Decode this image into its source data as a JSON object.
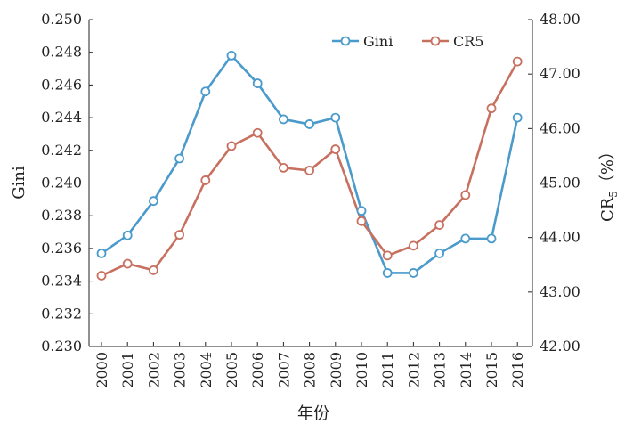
{
  "colors": {
    "gini": "#4a9acb",
    "cr5": "#c87060",
    "axis": "#222222"
  },
  "chart_data": {
    "type": "line",
    "categories": [
      "2000",
      "2001",
      "2002",
      "2003",
      "2004",
      "2005",
      "2006",
      "2007",
      "2008",
      "2009",
      "2010",
      "2011",
      "2012",
      "2013",
      "2014",
      "2015",
      "2016"
    ],
    "xlabel": "年份",
    "ylabel_left": "Gini",
    "ylabel_right": "CR",
    "ylabel_right_sub": "5",
    "ylabel_right_unit": "（%）",
    "ylim_left": [
      0.23,
      0.25
    ],
    "ylim_right": [
      42.0,
      48.0
    ],
    "yticks_left": [
      "0.230",
      "0.232",
      "0.234",
      "0.236",
      "0.238",
      "0.240",
      "0.242",
      "0.244",
      "0.246",
      "0.248",
      "0.250"
    ],
    "yticks_right": [
      "42.00",
      "43.00",
      "44.00",
      "45.00",
      "46.00",
      "47.00",
      "48.00"
    ],
    "legend_position": "top-right",
    "grid": false,
    "series": [
      {
        "name": "Gini",
        "axis": "left",
        "values": [
          0.2357,
          0.2368,
          0.2389,
          0.2415,
          0.2456,
          0.2478,
          0.2461,
          0.2439,
          0.2436,
          0.244,
          0.2383,
          0.2345,
          0.2345,
          0.2357,
          0.2366,
          0.2366,
          0.244
        ]
      },
      {
        "name": "CR5",
        "axis": "right",
        "values": [
          43.3,
          43.52,
          43.4,
          44.05,
          45.05,
          45.68,
          45.92,
          45.28,
          45.23,
          45.62,
          44.3,
          43.67,
          43.85,
          44.23,
          44.78,
          46.37,
          47.23
        ]
      }
    ]
  }
}
